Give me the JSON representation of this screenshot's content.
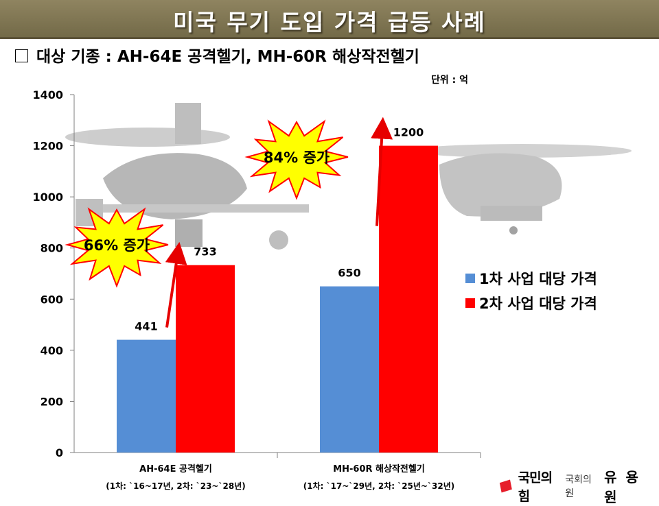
{
  "header": {
    "title": "미국 무기 도입 가격 급등 사례",
    "subtitle": "대상 기종 : AH-64E 공격헬기, MH-60R 해상작전헬기",
    "unit": "단위 : 억"
  },
  "chart_data": {
    "type": "bar",
    "categories": [
      "AH-64E 공격헬기",
      "MH-60R 해상작전헬기"
    ],
    "category_notes": [
      "(1차: `16~17년, 2차: `23~`28년)",
      "(1차: `17~`29년, 2차: `25년~`32년)"
    ],
    "series": [
      {
        "name": "1차 사업 대당 가격",
        "values": [
          441,
          650
        ],
        "color": "#558ed5"
      },
      {
        "name": "2차 사업 대당 가격",
        "values": [
          733,
          1200
        ],
        "color": "#ff0000"
      }
    ],
    "ylim": [
      0,
      1400
    ],
    "yticks": [
      0,
      200,
      400,
      600,
      800,
      1000,
      1200,
      1400
    ],
    "grid": false,
    "legend_position": "right",
    "annotations": [
      {
        "text": "66% 증가",
        "category": 0
      },
      {
        "text": "84% 증가",
        "category": 1
      }
    ]
  },
  "footer": {
    "party": "국민의힘",
    "member_label": "국회의원",
    "member_name": "유 용 원"
  },
  "colors": {
    "title_bar": "#7f7553",
    "burst_fill": "#ffff00",
    "burst_stroke": "#ff0000",
    "arrow": "#e60000",
    "party_red": "#e61e2b"
  },
  "icons": [
    "checkbox-square-icon",
    "starburst-icon",
    "arrow-icon",
    "party-logo-icon"
  ]
}
